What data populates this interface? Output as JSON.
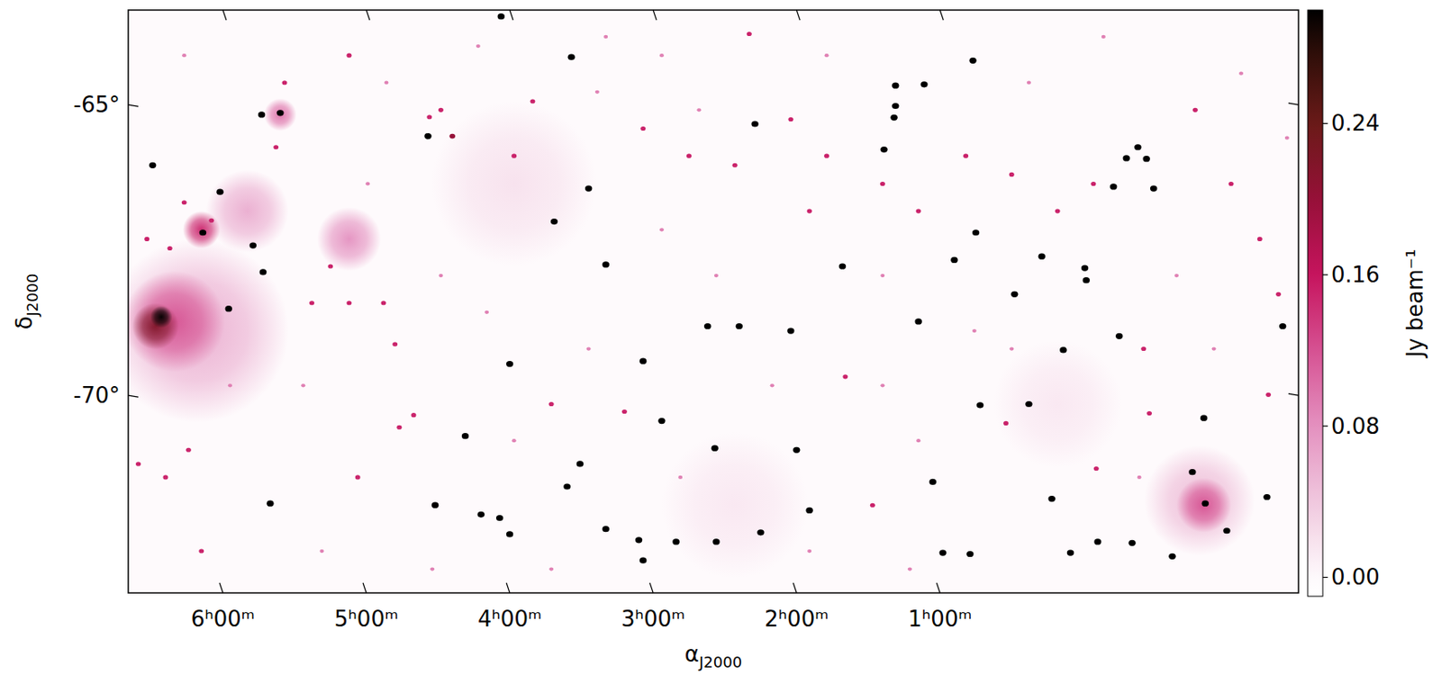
{
  "chart_data": {
    "type": "image",
    "x_label": "αJ2000",
    "y_label": "δJ2000",
    "xlim": [
      6.66,
      -1.5
    ],
    "ylim": [
      -73.4,
      -63.37
    ],
    "xticks": [
      {
        "value": 6,
        "label": "6ʰ00ᵐ"
      },
      {
        "value": 5,
        "label": "5ʰ00ᵐ"
      },
      {
        "value": 4,
        "label": "4ʰ00ᵐ"
      },
      {
        "value": 3,
        "label": "3ʰ00ᵐ"
      },
      {
        "value": 2,
        "label": "2ʰ00ᵐ"
      },
      {
        "value": 1,
        "label": "1ʰ00ᵐ"
      }
    ],
    "yticks": [
      {
        "value": -65,
        "label": "-65°"
      },
      {
        "value": -70,
        "label": "-70°"
      }
    ],
    "grid": false,
    "colorbar": {
      "label": "Jy beam⁻¹",
      "lim": [
        -0.01,
        0.3
      ],
      "ticks": [
        {
          "value": 0,
          "label": "0.00"
        },
        {
          "value": 0.08,
          "label": "0.08"
        },
        {
          "value": 0.16,
          "label": "0.16"
        },
        {
          "value": 0.24,
          "label": "0.24"
        }
      ]
    },
    "extended": [
      {
        "ra": 3.97,
        "dec": -66.36,
        "size": 1.42,
        "flux": 0.02
      },
      {
        "ra": 0.18,
        "dec": -70.15,
        "size": 1.1,
        "flux": 0.015
      },
      {
        "ra": 2.43,
        "dec": -71.89,
        "size": 1.26,
        "flux": 0.015
      },
      {
        "ra": 6.18,
        "dec": -68.89,
        "size": 1.58,
        "flux": 0.06
      },
      {
        "ra": 5.83,
        "dec": -66.83,
        "size": 0.71,
        "flux": 0.06
      },
      {
        "ra": 5.12,
        "dec": -67.31,
        "size": 0.55,
        "flux": 0.08
      },
      {
        "ra": 6.34,
        "dec": -68.73,
        "size": 0.87,
        "flux": 0.12
      },
      {
        "ra": 6.47,
        "dec": -68.81,
        "size": 0.4,
        "flux": 0.22
      },
      {
        "ra": 6.43,
        "dec": -68.65,
        "size": 0.19,
        "flux": 0.3
      },
      {
        "ra": 6.15,
        "dec": -67.15,
        "size": 0.32,
        "flux": 0.15
      },
      {
        "ra": 5.6,
        "dec": -65.17,
        "size": 0.28,
        "flux": 0.1
      },
      {
        "ra": -0.81,
        "dec": -71.81,
        "size": 0.95,
        "flux": 0.05
      },
      {
        "ra": -0.84,
        "dec": -71.89,
        "size": 0.47,
        "flux": 0.12
      }
    ],
    "sources": [
      {
        "ra": 4.06,
        "dec": -63.48,
        "flux": 0.3
      },
      {
        "ra": 5.73,
        "dec": -65.17,
        "flux": 0.3
      },
      {
        "ra": 6.49,
        "dec": -66.04,
        "flux": 0.3
      },
      {
        "ra": 5.6,
        "dec": -65.14,
        "flux": 0.3
      },
      {
        "ra": 0.77,
        "dec": -64.24,
        "flux": 0.3
      },
      {
        "ra": 3.57,
        "dec": -64.18,
        "flux": 0.3
      },
      {
        "ra": 2.33,
        "dec": -63.78,
        "flux": 0.15
      },
      {
        "ra": 2.29,
        "dec": -65.33,
        "flux": 0.3
      },
      {
        "ra": 4.57,
        "dec": -65.54,
        "flux": 0.3
      },
      {
        "ra": 4.4,
        "dec": -65.54,
        "flux": 0.2
      },
      {
        "ra": 4.56,
        "dec": -65.21,
        "flux": 0.15
      },
      {
        "ra": 1.11,
        "dec": -64.65,
        "flux": 0.3
      },
      {
        "ra": 1.31,
        "dec": -64.67,
        "flux": 0.3
      },
      {
        "ra": 1.31,
        "dec": -65.02,
        "flux": 0.3
      },
      {
        "ra": 1.32,
        "dec": -65.22,
        "flux": 0.3
      },
      {
        "ra": 1.39,
        "dec": -65.77,
        "flux": 0.3
      },
      {
        "ra": 6.14,
        "dec": -67.2,
        "flux": 0.3
      },
      {
        "ra": 6.02,
        "dec": -66.5,
        "flux": 0.3
      },
      {
        "ra": 5.79,
        "dec": -67.42,
        "flux": 0.3
      },
      {
        "ra": 5.72,
        "dec": -67.88,
        "flux": 0.3
      },
      {
        "ra": 5.96,
        "dec": -68.51,
        "flux": 0.3
      },
      {
        "ra": 3.45,
        "dec": -66.44,
        "flux": 0.3
      },
      {
        "ra": 3.69,
        "dec": -67.01,
        "flux": 0.3
      },
      {
        "ra": 3.33,
        "dec": -67.75,
        "flux": 0.3
      },
      {
        "ra": 1.68,
        "dec": -67.78,
        "flux": 0.3
      },
      {
        "ra": 0.9,
        "dec": -67.67,
        "flux": 0.3
      },
      {
        "ra": 0.75,
        "dec": -67.2,
        "flux": 0.3
      },
      {
        "ra": 0.29,
        "dec": -67.61,
        "flux": 0.3
      },
      {
        "ra": -0.01,
        "dec": -67.81,
        "flux": 0.3
      },
      {
        "ra": -0.02,
        "dec": -68.02,
        "flux": 0.3
      },
      {
        "ra": -0.21,
        "dec": -66.41,
        "flux": 0.3
      },
      {
        "ra": -0.49,
        "dec": -66.44,
        "flux": 0.3
      },
      {
        "ra": -0.38,
        "dec": -65.73,
        "flux": 0.3
      },
      {
        "ra": -0.3,
        "dec": -65.92,
        "flux": 0.3
      },
      {
        "ra": -0.44,
        "dec": -65.93,
        "flux": 0.3
      },
      {
        "ra": 4.0,
        "dec": -69.46,
        "flux": 0.3
      },
      {
        "ra": 3.51,
        "dec": -71.18,
        "flux": 0.3
      },
      {
        "ra": 2.57,
        "dec": -70.91,
        "flux": 0.3
      },
      {
        "ra": 2.94,
        "dec": -70.44,
        "flux": 0.3
      },
      {
        "ra": 3.07,
        "dec": -69.41,
        "flux": 0.3
      },
      {
        "ra": 2.62,
        "dec": -68.81,
        "flux": 0.3
      },
      {
        "ra": 2.4,
        "dec": -68.81,
        "flux": 0.3
      },
      {
        "ra": 2.04,
        "dec": -68.89,
        "flux": 0.3
      },
      {
        "ra": 1.15,
        "dec": -68.73,
        "flux": 0.3
      },
      {
        "ra": 4.52,
        "dec": -71.89,
        "flux": 0.3
      },
      {
        "ra": 4.2,
        "dec": -72.05,
        "flux": 0.3
      },
      {
        "ra": 4.07,
        "dec": -72.11,
        "flux": 0.3
      },
      {
        "ra": 4.0,
        "dec": -72.39,
        "flux": 0.3
      },
      {
        "ra": 3.33,
        "dec": -72.3,
        "flux": 0.3
      },
      {
        "ra": 3.1,
        "dec": -72.49,
        "flux": 0.3
      },
      {
        "ra": 3.07,
        "dec": -72.84,
        "flux": 0.3
      },
      {
        "ra": 2.84,
        "dec": -72.52,
        "flux": 0.3
      },
      {
        "ra": 2.56,
        "dec": -72.52,
        "flux": 0.3
      },
      {
        "ra": 2.25,
        "dec": -72.36,
        "flux": 0.3
      },
      {
        "ra": 1.91,
        "dec": -71.98,
        "flux": 0.3
      },
      {
        "ra": 0.79,
        "dec": -72.73,
        "flux": 0.3
      },
      {
        "ra": 0.98,
        "dec": -72.71,
        "flux": 0.3
      },
      {
        "ra": 0.09,
        "dec": -72.71,
        "flux": 0.3
      },
      {
        "ra": -0.1,
        "dec": -72.52,
        "flux": 0.3
      },
      {
        "ra": -0.34,
        "dec": -72.54,
        "flux": 0.3
      },
      {
        "ra": -0.76,
        "dec": -71.32,
        "flux": 0.3
      },
      {
        "ra": -0.85,
        "dec": -71.86,
        "flux": 0.3
      },
      {
        "ra": -1.0,
        "dec": -72.33,
        "flux": 0.3
      },
      {
        "ra": -0.62,
        "dec": -72.77,
        "flux": 0.3
      },
      {
        "ra": -1.28,
        "dec": -71.75,
        "flux": 0.3
      },
      {
        "ra": 5.67,
        "dec": -71.86,
        "flux": 0.3
      },
      {
        "ra": 4.31,
        "dec": -70.7,
        "flux": 0.3
      },
      {
        "ra": 3.6,
        "dec": -71.57,
        "flux": 0.3
      },
      {
        "ra": 2.0,
        "dec": -70.94,
        "flux": 0.3
      },
      {
        "ra": 0.48,
        "dec": -68.26,
        "flux": 0.3
      },
      {
        "ra": 0.14,
        "dec": -69.22,
        "flux": 0.3
      },
      {
        "ra": -0.25,
        "dec": -68.98,
        "flux": 0.3
      },
      {
        "ra": -0.84,
        "dec": -70.39,
        "flux": 0.3
      },
      {
        "ra": -1.39,
        "dec": -68.81,
        "flux": 0.3
      },
      {
        "ra": 0.72,
        "dec": -70.17,
        "flux": 0.3
      },
      {
        "ra": 0.38,
        "dec": -70.15,
        "flux": 0.3
      },
      {
        "ra": 0.22,
        "dec": -71.78,
        "flux": 0.3
      },
      {
        "ra": 1.05,
        "dec": -71.49,
        "flux": 0.3
      },
      {
        "ra": 3.71,
        "dec": -70.15,
        "flux": 0.15
      },
      {
        "ra": 3.2,
        "dec": -70.28,
        "flux": 0.15
      },
      {
        "ra": 1.66,
        "dec": -69.68,
        "flux": 0.15
      },
      {
        "ra": 0.54,
        "dec": -70.48,
        "flux": 0.15
      },
      {
        "ra": -0.09,
        "dec": -71.26,
        "flux": 0.15
      },
      {
        "ra": 1.47,
        "dec": -71.89,
        "flux": 0.15
      },
      {
        "ra": -0.42,
        "dec": -69.2,
        "flux": 0.15
      },
      {
        "ra": 5.25,
        "dec": -67.78,
        "flux": 0.15
      },
      {
        "ra": 5.38,
        "dec": -68.41,
        "flux": 0.15
      },
      {
        "ra": 5.12,
        "dec": -68.41,
        "flux": 0.15
      },
      {
        "ra": 4.88,
        "dec": -68.41,
        "flux": 0.15
      },
      {
        "ra": 4.8,
        "dec": -69.12,
        "flux": 0.15
      },
      {
        "ra": 4.77,
        "dec": -70.55,
        "flux": 0.15
      },
      {
        "ra": 5.06,
        "dec": -71.41,
        "flux": 0.15
      },
      {
        "ra": 4.67,
        "dec": -70.34,
        "flux": 0.15
      },
      {
        "ra": 6.4,
        "dec": -71.41,
        "flux": 0.15
      },
      {
        "ra": 6.59,
        "dec": -71.18,
        "flux": 0.15
      },
      {
        "ra": 6.24,
        "dec": -70.94,
        "flux": 0.15
      },
      {
        "ra": 6.15,
        "dec": -72.68,
        "flux": 0.15
      },
      {
        "ra": 6.53,
        "dec": -67.31,
        "flux": 0.15
      },
      {
        "ra": 6.37,
        "dec": -67.47,
        "flux": 0.15
      },
      {
        "ra": 6.27,
        "dec": -66.68,
        "flux": 0.15
      },
      {
        "ra": 6.08,
        "dec": -66.99,
        "flux": 0.15
      },
      {
        "ra": 5.63,
        "dec": -65.73,
        "flux": 0.15
      },
      {
        "ra": 5.57,
        "dec": -64.62,
        "flux": 0.15
      },
      {
        "ra": 5.12,
        "dec": -64.15,
        "flux": 0.15
      },
      {
        "ra": 4.48,
        "dec": -65.09,
        "flux": 0.15
      },
      {
        "ra": 3.97,
        "dec": -65.88,
        "flux": 0.15
      },
      {
        "ra": 3.84,
        "dec": -64.94,
        "flux": 0.15
      },
      {
        "ra": 3.07,
        "dec": -65.41,
        "flux": 0.15
      },
      {
        "ra": 2.75,
        "dec": -65.88,
        "flux": 0.15
      },
      {
        "ra": 2.43,
        "dec": -66.04,
        "flux": 0.15
      },
      {
        "ra": 2.04,
        "dec": -65.25,
        "flux": 0.15
      },
      {
        "ra": 1.91,
        "dec": -66.83,
        "flux": 0.15
      },
      {
        "ra": 1.79,
        "dec": -65.88,
        "flux": 0.15
      },
      {
        "ra": 1.4,
        "dec": -66.36,
        "flux": 0.15
      },
      {
        "ra": 1.15,
        "dec": -66.83,
        "flux": 0.15
      },
      {
        "ra": 0.82,
        "dec": -65.88,
        "flux": 0.15
      },
      {
        "ra": 0.5,
        "dec": -66.2,
        "flux": 0.15
      },
      {
        "ra": 0.18,
        "dec": -66.83,
        "flux": 0.15
      },
      {
        "ra": -0.07,
        "dec": -66.36,
        "flux": 0.15
      },
      {
        "ra": -0.78,
        "dec": -65.09,
        "flux": 0.15
      },
      {
        "ra": -1.03,
        "dec": -66.36,
        "flux": 0.15
      },
      {
        "ra": -1.23,
        "dec": -67.31,
        "flux": 0.15
      },
      {
        "ra": -1.36,
        "dec": -68.26,
        "flux": 0.15
      },
      {
        "ra": -1.29,
        "dec": -69.99,
        "flux": 0.15
      },
      {
        "ra": -0.46,
        "dec": -70.31,
        "flux": 0.15
      },
      {
        "ra": 6.27,
        "dec": -64.15,
        "flux": 0.09
      },
      {
        "ra": 4.86,
        "dec": -64.62,
        "flux": 0.09
      },
      {
        "ra": 4.22,
        "dec": -63.99,
        "flux": 0.09
      },
      {
        "ra": 3.39,
        "dec": -64.78,
        "flux": 0.09
      },
      {
        "ra": 2.94,
        "dec": -64.15,
        "flux": 0.09
      },
      {
        "ra": 2.68,
        "dec": -65.09,
        "flux": 0.09
      },
      {
        "ra": 1.79,
        "dec": -64.15,
        "flux": 0.09
      },
      {
        "ra": 0.38,
        "dec": -64.62,
        "flux": 0.09
      },
      {
        "ra": -0.14,
        "dec": -63.83,
        "flux": 0.09
      },
      {
        "ra": -1.1,
        "dec": -64.46,
        "flux": 0.09
      },
      {
        "ra": -1.42,
        "dec": -65.57,
        "flux": 0.09
      },
      {
        "ra": -0.65,
        "dec": -67.94,
        "flux": 0.09
      },
      {
        "ra": -0.91,
        "dec": -69.2,
        "flux": 0.09
      },
      {
        "ra": 0.5,
        "dec": -69.2,
        "flux": 0.09
      },
      {
        "ra": 1.4,
        "dec": -69.83,
        "flux": 0.09
      },
      {
        "ra": 2.17,
        "dec": -69.83,
        "flux": 0.09
      },
      {
        "ra": 2.81,
        "dec": -71.41,
        "flux": 0.09
      },
      {
        "ra": 3.71,
        "dec": -72.99,
        "flux": 0.09
      },
      {
        "ra": 4.54,
        "dec": -72.99,
        "flux": 0.09
      },
      {
        "ra": 5.31,
        "dec": -72.68,
        "flux": 0.09
      },
      {
        "ra": 5.44,
        "dec": -69.83,
        "flux": 0.09
      },
      {
        "ra": 4.48,
        "dec": -67.94,
        "flux": 0.09
      },
      {
        "ra": 4.16,
        "dec": -68.57,
        "flux": 0.09
      },
      {
        "ra": 2.94,
        "dec": -67.15,
        "flux": 0.09
      },
      {
        "ra": 2.56,
        "dec": -67.94,
        "flux": 0.09
      },
      {
        "ra": 1.4,
        "dec": -67.94,
        "flux": 0.09
      },
      {
        "ra": 0.76,
        "dec": -68.89,
        "flux": 0.09
      },
      {
        "ra": 1.91,
        "dec": -72.68,
        "flux": 0.09
      },
      {
        "ra": 1.21,
        "dec": -72.99,
        "flux": 0.09
      },
      {
        "ra": 3.45,
        "dec": -69.2,
        "flux": 0.09
      },
      {
        "ra": 3.97,
        "dec": -70.78,
        "flux": 0.09
      },
      {
        "ra": 5.95,
        "dec": -69.83,
        "flux": 0.09
      },
      {
        "ra": 4.99,
        "dec": -66.36,
        "flux": 0.09
      },
      {
        "ra": 3.33,
        "dec": -63.83,
        "flux": 0.09
      },
      {
        "ra": 1.15,
        "dec": -70.78,
        "flux": 0.09
      },
      {
        "ra": -0.39,
        "dec": -71.41,
        "flux": 0.09
      }
    ]
  }
}
